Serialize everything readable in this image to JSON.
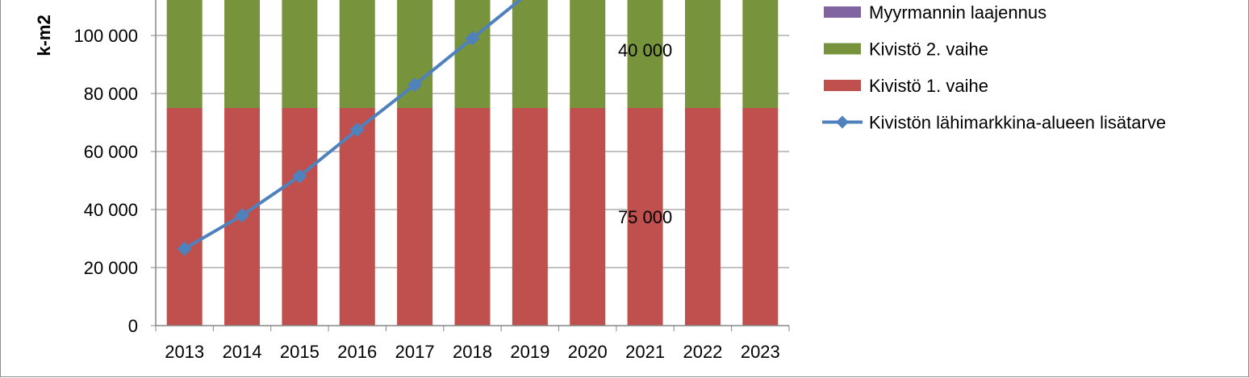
{
  "chart_data": {
    "type": "bar",
    "stacked": true,
    "ylabel": "k-m2",
    "ylim": [
      0,
      120000
    ],
    "yticks": [
      0,
      20000,
      40000,
      60000,
      80000,
      100000
    ],
    "ytick_labels": [
      "0",
      "20 000",
      "40 000",
      "60 000",
      "80 000",
      "100 000"
    ],
    "categories": [
      "2013",
      "2014",
      "2015",
      "2016",
      "2017",
      "2018",
      "2019",
      "2020",
      "2021",
      "2022",
      "2023"
    ],
    "grid": true,
    "legend_position": "right",
    "series": [
      {
        "name": "Kivistö 1. vaihe",
        "kind": "bar",
        "color": "#c0504d",
        "values": [
          75000,
          75000,
          75000,
          75000,
          75000,
          75000,
          75000,
          75000,
          75000,
          75000,
          75000
        ]
      },
      {
        "name": "Kivistö 2. vaihe",
        "kind": "bar",
        "color": "#77933c",
        "values": [
          40000,
          40000,
          40000,
          40000,
          40000,
          40000,
          40000,
          40000,
          40000,
          40000,
          40000
        ]
      },
      {
        "name": "Myyrmannin laajennus",
        "kind": "bar",
        "color": "#8064a2",
        "values": [
          0,
          0,
          0,
          0,
          0,
          0,
          0,
          0,
          0,
          0,
          0
        ]
      },
      {
        "name": "Kivistön lähimarkkina-alueen lisätarve",
        "kind": "line",
        "color": "#4f81bd",
        "values": [
          26500,
          38000,
          51500,
          67500,
          83000,
          99000,
          115000,
          null,
          null,
          null,
          null
        ]
      }
    ],
    "legend_order": [
      "Myyrmannin laajennus",
      "Kivistö 2. vaihe",
      "Kivistö 1. vaihe",
      "Kivistön lähimarkkina-alueen lisätarve"
    ],
    "annotations": [
      {
        "text": "40 000",
        "category": "2021",
        "y": 95000
      },
      {
        "text": "75 000",
        "category": "2021",
        "y": 37500
      }
    ]
  }
}
